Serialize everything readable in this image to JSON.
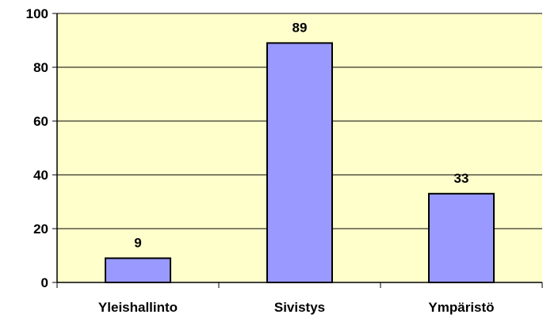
{
  "chart_data": {
    "type": "bar",
    "categories": [
      "Yleishallinto",
      "Sivistys",
      "Ympäristö"
    ],
    "values": [
      9,
      89,
      33
    ],
    "data_labels": [
      "9",
      "89",
      "33"
    ],
    "ylim": [
      0,
      100
    ],
    "yticks": [
      0,
      20,
      40,
      60,
      80,
      100
    ],
    "ytick_labels": [
      "0",
      "20",
      "40",
      "60",
      "80",
      "100"
    ],
    "title": "",
    "xlabel": "",
    "ylabel": "",
    "grid": true,
    "legend": "none",
    "colors": {
      "plot_background": "#ffffcc",
      "bar_fill": "#9999ff",
      "bar_stroke": "#000000",
      "gridline": "#000000",
      "axis": "#000000"
    }
  }
}
